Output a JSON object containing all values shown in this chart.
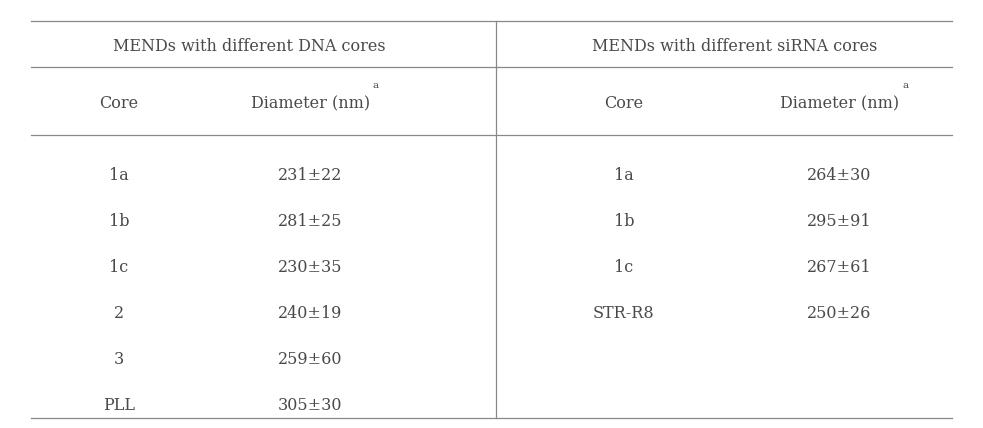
{
  "title_left": "MENDs with different DNA cores",
  "title_right": "MENDs with different siRNA cores",
  "col_header_core": "Core",
  "col_header_diameter": "Diameter (nm)",
  "superscript": "a",
  "dna_cores": [
    "1a",
    "1b",
    "1c",
    "2",
    "3",
    "PLL"
  ],
  "dna_diameters": [
    "231±22",
    "281±25",
    "230±35",
    "240±19",
    "259±60",
    "305±30"
  ],
  "sirna_cores": [
    "1a",
    "1b",
    "1c",
    "STR-R8"
  ],
  "sirna_diameters": [
    "264±30",
    "295±91",
    "267±61",
    "250±26"
  ],
  "background_color": "#ffffff",
  "text_color": "#4a4a4a",
  "line_color": "#888888",
  "font_size": 11.5
}
